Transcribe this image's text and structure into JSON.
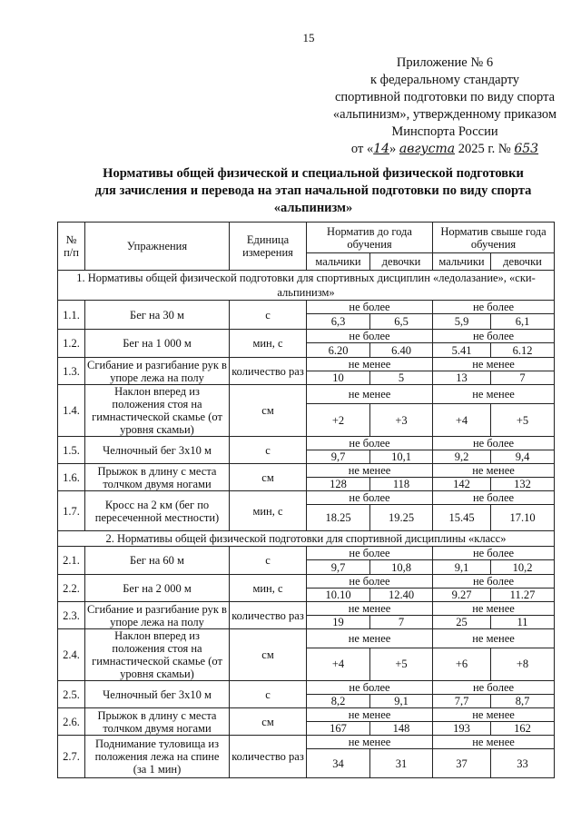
{
  "page_number": "15",
  "appendix": {
    "line1": "Приложение № 6",
    "line2": "к федеральному стандарту",
    "line3": "спортивной подготовки по виду спорта",
    "line4": "«альпинизм», утвержденному приказом",
    "line5": "Минспорта России",
    "date_prefix": "от «",
    "day": "14",
    "date_mid": "»",
    "month": "августа",
    "year": "2025 г. №",
    "number": "653"
  },
  "title": {
    "line1": "Нормативы общей физической и специальной физической подготовки",
    "line2": "для зачисления и перевода на этап начальной подготовки по виду спорта",
    "line3": "«альпинизм»"
  },
  "table": {
    "headers": {
      "num": "№ п/п",
      "exercise": "Упражнения",
      "unit": "Единица измерения",
      "group1": "Норматив до года обучения",
      "group2": "Норматив свыше года обучения",
      "boys": "мальчики",
      "girls": "девочки"
    },
    "sections": [
      {
        "title": "1. Нормативы общей физической подготовки для спортивных дисциплин «ледолазание», «ски-альпинизм»",
        "rows": [
          {
            "num": "1.1.",
            "exercise": "Бег на 30 м",
            "unit": "с",
            "q": "не более",
            "values": [
              "6,3",
              "6,5",
              "5,9",
              "6,1"
            ]
          },
          {
            "num": "1.2.",
            "exercise": "Бег на 1 000 м",
            "unit": "мин, с",
            "q": "не более",
            "values": [
              "6.20",
              "6.40",
              "5.41",
              "6.12"
            ]
          },
          {
            "num": "1.3.",
            "exercise": "Сгибание и разгибание рук в упоре лежа на полу",
            "unit": "количество раз",
            "q": "не менее",
            "values": [
              "10",
              "5",
              "13",
              "7"
            ]
          },
          {
            "num": "1.4.",
            "exercise": "Наклон вперед из положения стоя на гимнастической скамье (от уровня скамьи)",
            "unit": "см",
            "q": "не менее",
            "values": [
              "+2",
              "+3",
              "+4",
              "+5"
            ]
          },
          {
            "num": "1.5.",
            "exercise": "Челночный бег 3х10 м",
            "unit": "с",
            "q": "не более",
            "values": [
              "9,7",
              "10,1",
              "9,2",
              "9,4"
            ]
          },
          {
            "num": "1.6.",
            "exercise": "Прыжок в длину с места толчком двумя ногами",
            "unit": "см",
            "q": "не менее",
            "values": [
              "128",
              "118",
              "142",
              "132"
            ]
          },
          {
            "num": "1.7.",
            "exercise": "Кросс на 2 км (бег по пересеченной местности)",
            "unit": "мин, с",
            "q": "не более",
            "values": [
              "18.25",
              "19.25",
              "15.45",
              "17.10"
            ]
          }
        ]
      },
      {
        "title": "2. Нормативы общей физической подготовки для спортивной дисциплины «класс»",
        "rows": [
          {
            "num": "2.1.",
            "exercise": "Бег на 60 м",
            "unit": "с",
            "q": "не более",
            "values": [
              "9,7",
              "10,8",
              "9,1",
              "10,2"
            ]
          },
          {
            "num": "2.2.",
            "exercise": "Бег на 2 000 м",
            "unit": "мин, с",
            "q": "не более",
            "values": [
              "10.10",
              "12.40",
              "9.27",
              "11.27"
            ]
          },
          {
            "num": "2.3.",
            "exercise": "Сгибание и разгибание рук в упоре лежа на полу",
            "unit": "количество раз",
            "q": "не менее",
            "values": [
              "19",
              "7",
              "25",
              "11"
            ]
          },
          {
            "num": "2.4.",
            "exercise": "Наклон вперед из положения стоя на гимнастической скамье (от уровня скамьи)",
            "unit": "см",
            "q": "не менее",
            "values": [
              "+4",
              "+5",
              "+6",
              "+8"
            ]
          },
          {
            "num": "2.5.",
            "exercise": "Челночный бег 3х10 м",
            "unit": "с",
            "q": "не более",
            "values": [
              "8,2",
              "9,1",
              "7,7",
              "8,7"
            ]
          },
          {
            "num": "2.6.",
            "exercise": "Прыжок в длину с места толчком двумя ногами",
            "unit": "см",
            "q": "не менее",
            "values": [
              "167",
              "148",
              "193",
              "162"
            ]
          },
          {
            "num": "2.7.",
            "exercise": "Поднимание туловища из положения лежа на спине (за 1 мин)",
            "unit": "количество раз",
            "q": "не менее",
            "values": [
              "34",
              "31",
              "37",
              "33"
            ]
          }
        ]
      }
    ]
  }
}
